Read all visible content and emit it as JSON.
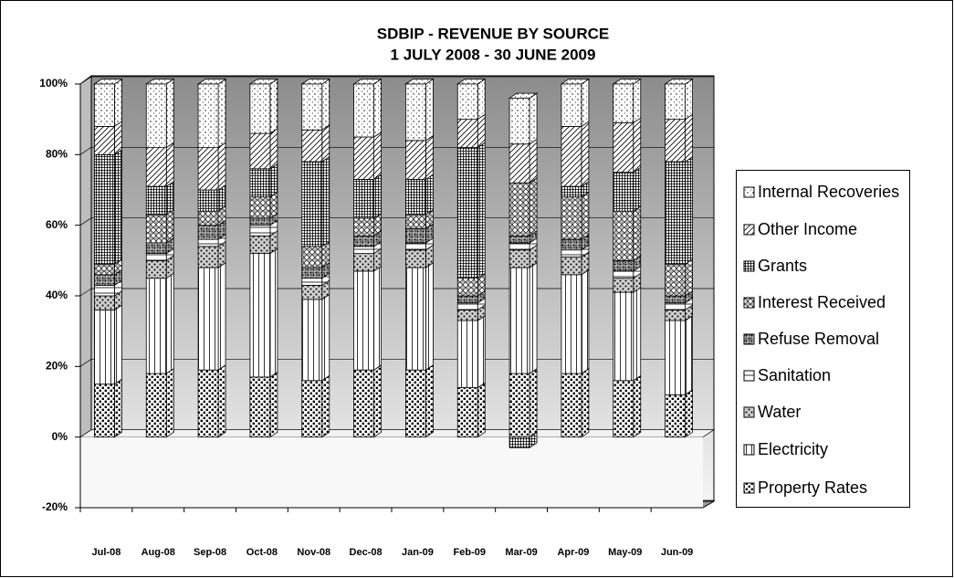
{
  "chart_data": {
    "type": "bar",
    "stacked": true,
    "title": "SDBIP - REVENUE BY SOURCE",
    "subtitle": "1 JULY 2008 - 30 JUNE 2009",
    "categories": [
      "Jul-08",
      "Aug-08",
      "Sep-08",
      "Oct-08",
      "Nov-08",
      "Dec-08",
      "Jan-09",
      "Feb-09",
      "Mar-09",
      "Apr-09",
      "May-09",
      "Jun-09"
    ],
    "series": [
      {
        "name": "Property Rates",
        "color": "#ffffff",
        "values": [
          15,
          18,
          19,
          17,
          16,
          19,
          19,
          14,
          18,
          18,
          16,
          12
        ]
      },
      {
        "name": "Electricity",
        "color": "#ffffff",
        "values": [
          21,
          27,
          29,
          35,
          23,
          28,
          29,
          19,
          30,
          28,
          25,
          21
        ]
      },
      {
        "name": "Water",
        "color": "#cfcfcf",
        "values": [
          4,
          5,
          6,
          5,
          4,
          5,
          5,
          3,
          5,
          5,
          4,
          3
        ]
      },
      {
        "name": "Sanitation",
        "color": "#ffffff",
        "values": [
          3,
          2,
          2,
          3,
          2,
          2,
          2,
          2,
          2,
          2,
          2,
          2
        ]
      },
      {
        "name": "Refuse Removal",
        "color": "#5a5a5a",
        "values": [
          3,
          3,
          4,
          2,
          3,
          3,
          4,
          2,
          2,
          3,
          3,
          2
        ]
      },
      {
        "name": "Interest Received",
        "color": "#ffffff",
        "values": [
          3,
          8,
          4,
          6,
          6,
          5,
          4,
          5,
          15,
          12,
          14,
          9
        ]
      },
      {
        "name": "Grants",
        "color": "#ffffff",
        "values": [
          31,
          8,
          6,
          8,
          24,
          11,
          10,
          37,
          -3,
          3,
          11,
          29
        ]
      },
      {
        "name": "Other Income",
        "color": "#ffffff",
        "values": [
          8,
          11,
          12,
          10,
          9,
          12,
          11,
          8,
          11,
          17,
          14,
          12
        ]
      },
      {
        "name": "Internal Recoveries",
        "color": "#ffffff",
        "values": [
          12,
          18,
          18,
          14,
          13,
          15,
          16,
          10,
          13,
          12,
          11,
          10
        ]
      }
    ],
    "ylim": [
      -20,
      100
    ],
    "yticks": [
      {
        "value": -20,
        "label": "-20%"
      },
      {
        "value": 0,
        "label": "0%"
      },
      {
        "value": 20,
        "label": "20%"
      },
      {
        "value": 40,
        "label": "40%"
      },
      {
        "value": 60,
        "label": "60%"
      },
      {
        "value": 80,
        "label": "80%"
      },
      {
        "value": 100,
        "label": "100%"
      }
    ],
    "grid": true,
    "legend": "right"
  }
}
